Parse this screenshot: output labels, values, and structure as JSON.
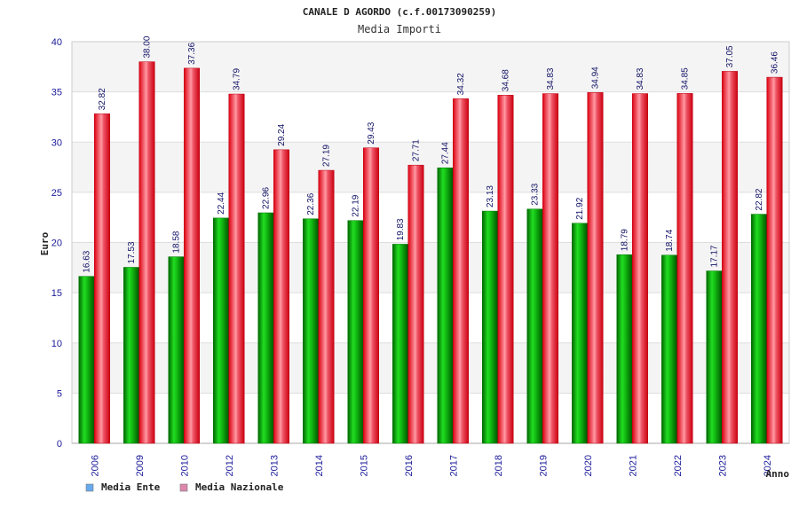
{
  "chart_data": {
    "type": "bar",
    "title": "CANALE D AGORDO (c.f.00173090259)",
    "subtitle": "Media Importi",
    "ylabel": "Euro",
    "xlabel": "Anno",
    "ylim": [
      0,
      40
    ],
    "yticks": [
      0,
      5,
      10,
      15,
      20,
      25,
      30,
      35,
      40
    ],
    "grid": true,
    "legend_position": "bottom-left",
    "categories": [
      "2006",
      "2009",
      "2010",
      "2012",
      "2013",
      "2014",
      "2015",
      "2016",
      "2017",
      "2018",
      "2019",
      "2020",
      "2021",
      "2022",
      "2023",
      "2024"
    ],
    "series": [
      {
        "name": "Media Ente",
        "bar_color": "#00b000",
        "legend_color": "#66aaee",
        "values": [
          16.63,
          17.53,
          18.58,
          22.44,
          22.96,
          22.36,
          22.19,
          19.83,
          27.44,
          23.13,
          23.33,
          21.92,
          18.79,
          18.74,
          17.17,
          22.82
        ],
        "labels": [
          "16.63",
          "17.53",
          "18.58",
          "22.44",
          "22.96",
          "22.36",
          "22.19",
          "19.83",
          "27.44",
          "23.13",
          "23.33",
          "21.92",
          "18.79",
          "18.74",
          "17.17",
          "22.82"
        ]
      },
      {
        "name": "Media Nazionale",
        "bar_color": "#ee1122",
        "legend_color": "#dd88aa",
        "values": [
          32.82,
          38.0,
          37.36,
          34.79,
          29.24,
          27.19,
          29.43,
          27.71,
          34.32,
          34.68,
          34.83,
          34.94,
          34.83,
          34.85,
          37.05,
          36.46
        ],
        "labels": [
          "32.82",
          "38.00",
          "37.36",
          "34.79",
          "29.24",
          "27.19",
          "29.43",
          "27.71",
          "34.32",
          "34.68",
          "34.83",
          "34.94",
          "34.83",
          "34.85",
          "37.05",
          "36.46"
        ]
      }
    ]
  }
}
